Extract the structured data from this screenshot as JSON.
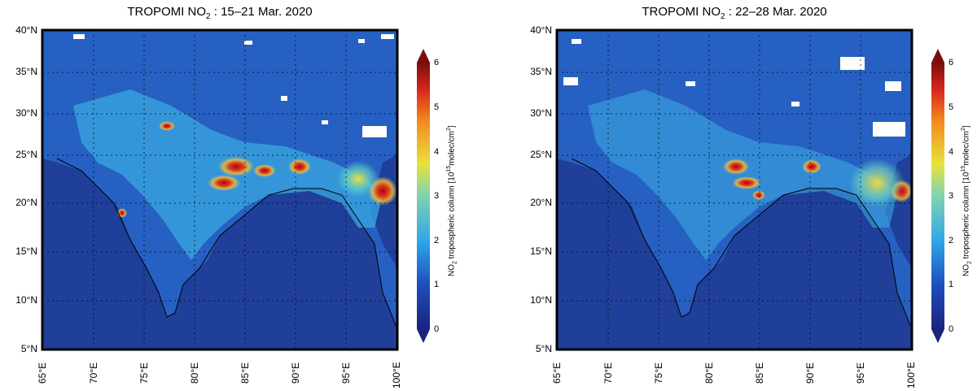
{
  "panels": [
    {
      "title_main": "TROPOMI NO",
      "title_sub": "2",
      "title_rest": " : 15–21 Mar. 2020"
    },
    {
      "title_main": "TROPOMI NO",
      "title_sub": "2",
      "title_rest": " : 22–28 Mar. 2020"
    }
  ],
  "lat_labels": [
    "40°N",
    "35°N",
    "30°N",
    "25°N",
    "20°N",
    "15°N",
    "10°N",
    "5°N"
  ],
  "lon_labels": [
    "65°E",
    "70°E",
    "75°E",
    "80°E",
    "85°E",
    "90°E",
    "95°E",
    "100°E"
  ],
  "colorbar": {
    "ticks": [
      "6",
      "5",
      "4",
      "3",
      "2",
      "1",
      "0"
    ],
    "title_a": "NO",
    "title_sub": "2",
    "title_b": " tropospheric column [10",
    "title_sup": "15",
    "title_c": "molec/cm",
    "title_sup2": "2",
    "title_d": "]",
    "range": [
      0,
      6
    ]
  },
  "colors": {
    "ocean": "#1f3f99",
    "land_low": "#2a62c4",
    "mid": "#35b6e8",
    "high": "#f2e23a",
    "peak": "#b01010"
  }
}
